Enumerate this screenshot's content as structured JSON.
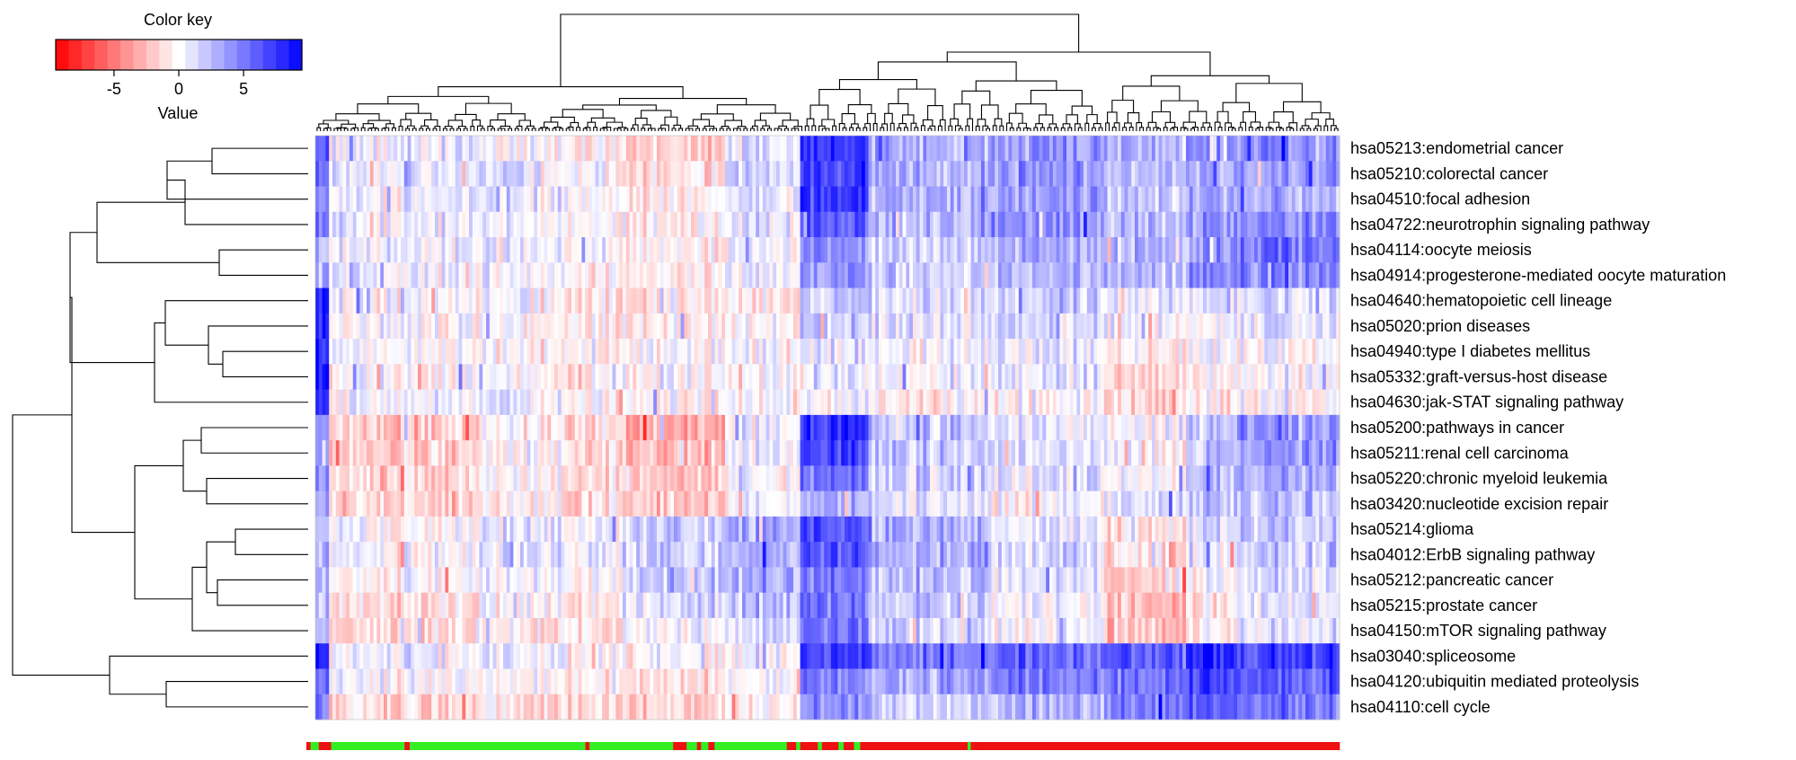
{
  "colors": {
    "low": "#ff0000",
    "mid": "#ffffff",
    "high": "#0000ff",
    "group_a": "#33ee22",
    "group_b": "#ee1111"
  },
  "chart_data": {
    "type": "heatmap",
    "title": "",
    "color_key": {
      "title": "Color key",
      "xlabel": "Value",
      "range": [
        -9.5,
        9.5
      ],
      "ticks": [
        "-5",
        "0",
        "5"
      ],
      "tick_values": [
        -5,
        0,
        5
      ],
      "colormap": "red-white-blue"
    },
    "rows": [
      "hsa05213:endometrial cancer",
      "hsa05210:colorectal cancer",
      "hsa04510:focal adhesion",
      "hsa04722:neurotrophin signaling pathway",
      "hsa04114:oocyte meiosis",
      "hsa04914:progesterone-mediated oocyte maturation",
      "hsa04640:hematopoietic cell lineage",
      "hsa05020:prion diseases",
      "hsa04940:type I diabetes mellitus",
      "hsa05332:graft-versus-host disease",
      "hsa04630:jak-STAT signaling pathway",
      "hsa05200:pathways in cancer",
      "hsa05211:renal cell carcinoma",
      "hsa05220:chronic myeloid leukemia",
      "hsa03420:nucleotide excision repair",
      "hsa05214:glioma",
      "hsa04012:ErbB signaling pathway",
      "hsa05212:pancreatic cancer",
      "hsa05215:prostate cancer",
      "hsa04150:mTOR signaling pathway",
      "hsa03040:spliceosome",
      "hsa04120:ubiquitin mediated proteolysis",
      "hsa04110:cell cycle"
    ],
    "column_count": 300,
    "column_group_segments": [
      {
        "group": "b",
        "from": 0,
        "to": 0.004
      },
      {
        "group": "a",
        "from": 0.004,
        "to": 0.012
      },
      {
        "group": "b",
        "from": 0.012,
        "to": 0.024
      },
      {
        "group": "a",
        "from": 0.024,
        "to": 0.095
      },
      {
        "group": "b",
        "from": 0.095,
        "to": 0.1
      },
      {
        "group": "a",
        "from": 0.1,
        "to": 0.27
      },
      {
        "group": "b",
        "from": 0.27,
        "to": 0.274
      },
      {
        "group": "a",
        "from": 0.274,
        "to": 0.355
      },
      {
        "group": "b",
        "from": 0.355,
        "to": 0.368
      },
      {
        "group": "a",
        "from": 0.368,
        "to": 0.378
      },
      {
        "group": "b",
        "from": 0.378,
        "to": 0.382
      },
      {
        "group": "a",
        "from": 0.382,
        "to": 0.389
      },
      {
        "group": "b",
        "from": 0.389,
        "to": 0.395
      },
      {
        "group": "a",
        "from": 0.395,
        "to": 0.465
      },
      {
        "group": "b",
        "from": 0.465,
        "to": 0.474
      },
      {
        "group": "a",
        "from": 0.474,
        "to": 0.478
      },
      {
        "group": "b",
        "from": 0.478,
        "to": 0.495
      },
      {
        "group": "a",
        "from": 0.495,
        "to": 0.499
      },
      {
        "group": "b",
        "from": 0.499,
        "to": 0.515
      },
      {
        "group": "a",
        "from": 0.515,
        "to": 0.52
      },
      {
        "group": "b",
        "from": 0.52,
        "to": 0.53
      },
      {
        "group": "a",
        "from": 0.53,
        "to": 0.536
      },
      {
        "group": "b",
        "from": 0.536,
        "to": 0.64
      },
      {
        "group": "a",
        "from": 0.64,
        "to": 0.643
      },
      {
        "group": "b",
        "from": 0.643,
        "to": 0.646
      },
      {
        "group": "a",
        "from": 0.646,
        "to": 0.65
      },
      {
        "group": "b",
        "from": 0.65,
        "to": 0.652
      },
      {
        "group": "a",
        "from": 0.652,
        "to": 0.655
      },
      {
        "group": "b",
        "from": 0.655,
        "to": 0.648
      },
      {
        "group": "b",
        "from": 0.648,
        "to": 0.64
      },
      {
        "group": "b",
        "from": 0.648,
        "to": 0.654
      },
      {
        "group": "b",
        "from": 0.654,
        "to": 0.655
      },
      {
        "group": "b",
        "from": 0.655,
        "to": 0.66
      },
      {
        "group": "a",
        "from": 0.66,
        "to": 0.668
      },
      {
        "group": "b",
        "from": 0.668,
        "to": 0.655
      },
      {
        "group": "b",
        "from": 0.655,
        "to": 0.655
      },
      {
        "group": "b",
        "from": 0.655,
        "to": 0.655
      },
      {
        "group": "b",
        "from": 0.655,
        "to": 0.655
      },
      {
        "group": "b",
        "from": 0.668,
        "to": 0.655
      },
      {
        "group": "b",
        "from": 0.655,
        "to": 0.646
      },
      {
        "group": "b",
        "from": 0.646,
        "to": 0.655
      },
      {
        "group": "b",
        "from": 0.655,
        "to": 0.655
      },
      {
        "group": "a",
        "from": 0.655,
        "to": 0.668
      },
      {
        "group": "b",
        "from": 0.668,
        "to": 0.655
      },
      {
        "group": "b",
        "from": 0.655,
        "to": 0.655
      },
      {
        "group": "b",
        "from": 0.655,
        "to": 0.655
      },
      {
        "group": "b",
        "from": 0.655,
        "to": 0.655
      },
      {
        "group": "b",
        "from": 0.655,
        "to": 0.655
      },
      {
        "group": "b",
        "from": 0.655,
        "to": 0.655
      },
      {
        "group": "b",
        "from": 0.655,
        "to": 0.655
      },
      {
        "group": "b",
        "from": 0.655,
        "to": 0.655
      },
      {
        "group": "b",
        "from": 0.655,
        "to": 0.655
      },
      {
        "group": "b",
        "from": 0.655,
        "to": 0.655
      },
      {
        "group": "b",
        "from": 0.655,
        "to": 0.64
      },
      {
        "group": "b",
        "from": 0.648,
        "to": 0.655
      },
      {
        "group": "b",
        "from": 0.655,
        "to": 0.655
      },
      {
        "group": "b",
        "from": 0.655,
        "to": 0.655
      },
      {
        "group": "b",
        "from": 0.655,
        "to": 0.655
      },
      {
        "group": "b",
        "from": 0.655,
        "to": 0.655
      },
      {
        "group": "b",
        "from": 0.655,
        "to": 0.655
      },
      {
        "group": "b",
        "from": 0.655,
        "to": 0.655
      },
      {
        "group": "b",
        "from": 0.655,
        "to": 0.655
      },
      {
        "group": "b",
        "from": 0.655,
        "to": 0.655
      },
      {
        "group": "b",
        "from": 0.655,
        "to": 0.655
      },
      {
        "group": "b",
        "from": 0.655,
        "to": 0.655
      },
      {
        "group": "b",
        "from": 0.655,
        "to": 0.655
      },
      {
        "group": "b",
        "from": 0.655,
        "to": 0.655
      },
      {
        "group": "b",
        "from": 0.655,
        "to": 0.655
      },
      {
        "group": "b",
        "from": 0.655,
        "to": 0.655
      },
      {
        "group": "b",
        "from": 0.655,
        "to": 0.655
      },
      {
        "group": "b",
        "from": 0.655,
        "to": 0.655
      },
      {
        "group": "b",
        "from": 0.655,
        "to": 0.655
      },
      {
        "group": "b",
        "from": 0.655,
        "to": 0.655
      },
      {
        "group": "b",
        "from": 0.655,
        "to": 0.655
      },
      {
        "group": "b",
        "from": 0.655,
        "to": 0.655
      },
      {
        "group": "b",
        "from": 0.655,
        "to": 0.655
      },
      {
        "group": "b",
        "from": 0.655,
        "to": 0.655
      },
      {
        "group": "b",
        "from": 0.655,
        "to": 0.655
      },
      {
        "group": "b",
        "from": 0.655,
        "to": 0.655
      },
      {
        "group": "b",
        "from": 0.655,
        "to": 0.655
      },
      {
        "group": "b",
        "from": 0.655,
        "to": 0.655
      },
      {
        "group": "b",
        "from": 0.655,
        "to": 0.655
      },
      {
        "group": "b",
        "from": 0.655,
        "to": 0.655
      },
      {
        "group": "b",
        "from": 0.655,
        "to": 0.655
      },
      {
        "group": "b",
        "from": 0.655,
        "to": 0.655
      },
      {
        "group": "b",
        "from": 0.655,
        "to": 0.655
      },
      {
        "group": "b",
        "from": 0.655,
        "to": 0.655
      },
      {
        "group": "b",
        "from": 0.655,
        "to": 0.655
      },
      {
        "group": "b",
        "from": 0.655,
        "to": 0.655
      },
      {
        "group": "b",
        "from": 0.655,
        "to": 0.655
      },
      {
        "group": "b",
        "from": 0.655,
        "to": 0.655
      },
      {
        "group": "b",
        "from": 0.655,
        "to": 0.655
      },
      {
        "group": "b",
        "from": 0.655,
        "to": 0.655
      },
      {
        "group": "b",
        "from": 0.655,
        "to": 0.655
      },
      {
        "group": "b",
        "from": 0.655,
        "to": 1.0
      }
    ],
    "column_regions": [
      {
        "from": 0,
        "to": 0.012,
        "profile": [
          6,
          5,
          4,
          5,
          3,
          4,
          9,
          9,
          9,
          9,
          8,
          4,
          4,
          4,
          3,
          3,
          3,
          3,
          3,
          3,
          8,
          6,
          5
        ]
      },
      {
        "from": 0.012,
        "to": 0.16,
        "profile": [
          0.5,
          1,
          0.5,
          0.5,
          0.5,
          0.5,
          0,
          0,
          0,
          0,
          0,
          -2,
          -2,
          -1.5,
          -2,
          0,
          0,
          -0.5,
          -1,
          -1.5,
          0.5,
          0,
          -1.5
        ]
      },
      {
        "from": 0.16,
        "to": 0.3,
        "profile": [
          -0.5,
          0.5,
          0.3,
          0,
          0,
          0,
          -0.5,
          -0.5,
          -0.5,
          -0.5,
          0,
          -1,
          -1,
          -1,
          -1,
          0.5,
          0.5,
          0,
          -0.5,
          -1,
          0,
          -0.5,
          -1.5
        ]
      },
      {
        "from": 0.3,
        "to": 0.4,
        "profile": [
          -2,
          -1,
          -0.5,
          -0.5,
          -0.5,
          -0.5,
          -0.5,
          -0.5,
          0,
          0,
          0,
          -3,
          -2.5,
          -2,
          -2,
          2,
          2,
          2,
          1.5,
          0.5,
          -0.5,
          -1,
          -1.5
        ]
      },
      {
        "from": 0.4,
        "to": 0.475,
        "profile": [
          1,
          2,
          1.5,
          1,
          0.5,
          1,
          -0.5,
          0,
          0.5,
          0,
          0,
          0.5,
          1,
          0,
          0,
          3,
          3.5,
          3,
          2.5,
          1.5,
          0.5,
          0,
          -0.5
        ]
      },
      {
        "from": 0.475,
        "to": 0.54,
        "profile": [
          7,
          7,
          7,
          6,
          4,
          4,
          2,
          2,
          1,
          1,
          0,
          7,
          7,
          5,
          3,
          6,
          6,
          5,
          5,
          5,
          7,
          5,
          4
        ]
      },
      {
        "from": 0.54,
        "to": 0.66,
        "profile": [
          3,
          3,
          3,
          3,
          2,
          2,
          1,
          1,
          0.5,
          0.5,
          -0.5,
          2,
          2,
          1.5,
          1,
          3,
          3,
          2.5,
          2,
          1.5,
          5,
          3,
          2
        ]
      },
      {
        "from": 0.66,
        "to": 0.77,
        "profile": [
          4,
          4,
          3.5,
          4,
          3,
          3,
          2,
          2,
          1,
          1,
          0,
          1,
          1.5,
          1,
          0,
          1,
          1.5,
          1,
          0.5,
          0.5,
          6,
          5,
          3
        ]
      },
      {
        "from": 0.77,
        "to": 0.85,
        "profile": [
          2.5,
          2,
          2,
          2.5,
          2.5,
          2.5,
          0.5,
          0,
          -1,
          -1.5,
          -2,
          0,
          0,
          0,
          1,
          -1,
          -1.5,
          -2,
          -2.5,
          -2.5,
          6,
          5,
          5
        ]
      },
      {
        "from": 0.85,
        "to": 0.9,
        "profile": [
          4,
          3,
          3,
          4,
          4,
          4,
          1,
          0.5,
          0,
          -0.5,
          -1,
          2,
          2,
          2,
          2,
          1,
          1,
          0,
          -1,
          -1,
          8,
          7,
          6
        ]
      },
      {
        "from": 0.9,
        "to": 1.0,
        "profile": [
          4,
          3.5,
          3,
          4,
          5,
          4.5,
          1,
          1,
          0,
          0,
          -0.5,
          4,
          4,
          3,
          2.5,
          2,
          2,
          1.5,
          1,
          1,
          7,
          6,
          5
        ]
      }
    ]
  }
}
